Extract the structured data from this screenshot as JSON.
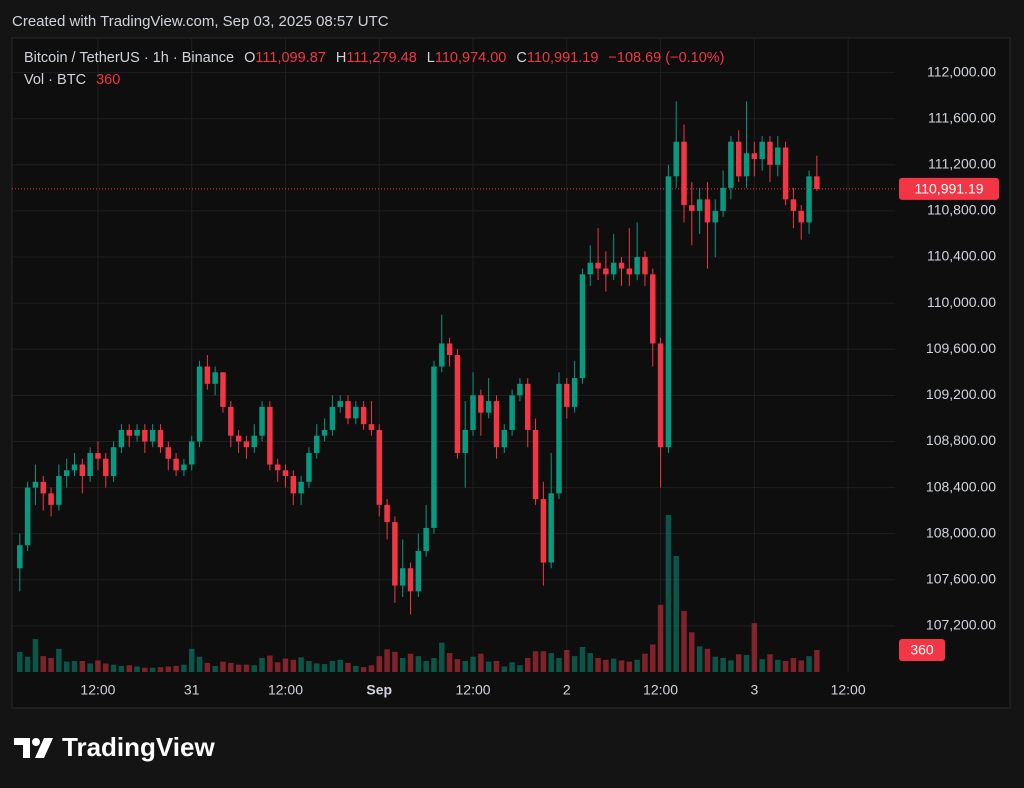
{
  "header": {
    "credit": "Created with TradingView.com, Sep 03, 2025 08:57 UTC"
  },
  "chart_data": {
    "type": "candlestick",
    "symbol": "Bitcoin / TetherUS · 1h · Binance",
    "ohlc_legend": [
      {
        "key": "O",
        "label": "111,099.87"
      },
      {
        "key": "H",
        "label": "111,279.48"
      },
      {
        "key": "L",
        "label": "110,974.00"
      },
      {
        "key": "C",
        "label": "110,991.19"
      }
    ],
    "change": "−108.69 (−0.10%)",
    "volume_title": "Vol · BTC",
    "volume_label": "360",
    "last_price_label": "110,991.19",
    "x": [
      "08-30 02:00",
      "08-30 03:00",
      "08-30 04:00",
      "08-30 05:00",
      "08-30 06:00",
      "08-30 07:00",
      "08-30 08:00",
      "08-30 09:00",
      "08-30 10:00",
      "08-30 11:00",
      "08-30 12:00",
      "08-30 13:00",
      "08-30 14:00",
      "08-30 15:00",
      "08-30 16:00",
      "08-30 17:00",
      "08-30 18:00",
      "08-30 19:00",
      "08-30 20:00",
      "08-30 21:00",
      "08-30 22:00",
      "08-30 23:00",
      "08-31 00:00",
      "08-31 01:00",
      "08-31 02:00",
      "08-31 03:00",
      "08-31 04:00",
      "08-31 05:00",
      "08-31 06:00",
      "08-31 07:00",
      "08-31 08:00",
      "08-31 09:00",
      "08-31 10:00",
      "08-31 11:00",
      "08-31 12:00",
      "08-31 13:00",
      "08-31 14:00",
      "08-31 15:00",
      "08-31 16:00",
      "08-31 17:00",
      "08-31 18:00",
      "08-31 19:00",
      "08-31 20:00",
      "08-31 21:00",
      "08-31 22:00",
      "08-31 23:00",
      "09-01 00:00",
      "09-01 01:00",
      "09-01 02:00",
      "09-01 03:00",
      "09-01 04:00",
      "09-01 05:00",
      "09-01 06:00",
      "09-01 07:00",
      "09-01 08:00",
      "09-01 09:00",
      "09-01 10:00",
      "09-01 11:00",
      "09-01 12:00",
      "09-01 13:00",
      "09-01 14:00",
      "09-01 15:00",
      "09-01 16:00",
      "09-01 17:00",
      "09-01 18:00",
      "09-01 19:00",
      "09-01 20:00",
      "09-01 21:00",
      "09-01 22:00",
      "09-01 23:00",
      "09-02 00:00",
      "09-02 01:00",
      "09-02 02:00",
      "09-02 03:00",
      "09-02 04:00",
      "09-02 05:00",
      "09-02 06:00",
      "09-02 07:00",
      "09-02 08:00",
      "09-02 09:00",
      "09-02 10:00",
      "09-02 11:00",
      "09-02 12:00",
      "09-02 13:00",
      "09-02 14:00",
      "09-02 15:00",
      "09-02 16:00",
      "09-02 17:00",
      "09-02 18:00",
      "09-02 19:00",
      "09-02 20:00",
      "09-02 21:00",
      "09-02 22:00",
      "09-02 23:00",
      "09-03 00:00",
      "09-03 01:00",
      "09-03 02:00",
      "09-03 03:00",
      "09-03 04:00",
      "09-03 05:00",
      "09-03 06:00",
      "09-03 07:00",
      "09-03 08:00"
    ],
    "open": [
      107700,
      107900,
      108400,
      108450,
      108350,
      108250,
      108500,
      108550,
      108600,
      108500,
      108700,
      108650,
      108500,
      108750,
      108900,
      108850,
      108900,
      108800,
      108900,
      108750,
      108650,
      108550,
      108600,
      108800,
      109450,
      109300,
      109400,
      109100,
      108850,
      108800,
      108750,
      108850,
      109100,
      108600,
      108550,
      108500,
      108350,
      108450,
      108700,
      108850,
      108900,
      109100,
      109150,
      109000,
      109100,
      108950,
      108900,
      108250,
      108100,
      107550,
      107700,
      107500,
      107850,
      108050,
      109450,
      109650,
      109550,
      108700,
      108900,
      109200,
      109050,
      109150,
      108750,
      108900,
      109200,
      109300,
      108900,
      108300,
      107750,
      108350,
      109300,
      109100,
      109350,
      110250,
      110350,
      110300,
      110250,
      110350,
      110300,
      110250,
      110400,
      110250,
      109650,
      108750,
      111100,
      111400,
      110850,
      110800,
      110900,
      110700,
      110800,
      111000,
      111400,
      111100,
      111300,
      111250,
      111400,
      111200,
      111350,
      110900,
      110800,
      110700,
      111099.87
    ],
    "high": [
      108000,
      108450,
      108600,
      108500,
      108400,
      108600,
      108650,
      108700,
      108650,
      108750,
      108800,
      108700,
      108800,
      108950,
      108950,
      108950,
      108950,
      108950,
      108950,
      108800,
      108700,
      108650,
      108850,
      109500,
      109550,
      109450,
      109400,
      109150,
      108900,
      108850,
      108950,
      109150,
      109150,
      108650,
      108600,
      108550,
      108500,
      108750,
      108950,
      109000,
      109200,
      109200,
      109200,
      109150,
      109150,
      109150,
      108950,
      108300,
      108150,
      107950,
      107750,
      108000,
      108250,
      109500,
      109900,
      109700,
      109600,
      109150,
      109400,
      109250,
      109350,
      109200,
      108950,
      109250,
      109350,
      109350,
      109000,
      108450,
      108700,
      109400,
      109350,
      109500,
      110300,
      110500,
      110650,
      110450,
      110600,
      110400,
      110650,
      110700,
      110450,
      110300,
      109700,
      111200,
      111750,
      111550,
      111050,
      111000,
      111050,
      110900,
      111150,
      111450,
      111500,
      111750,
      111400,
      111450,
      111450,
      111450,
      111400,
      111000,
      110850,
      111150,
      111279.48
    ],
    "low": [
      107500,
      107850,
      108250,
      108200,
      108150,
      108200,
      108400,
      108500,
      108350,
      108450,
      108550,
      108400,
      108450,
      108700,
      108750,
      108800,
      108700,
      108750,
      108700,
      108550,
      108500,
      108500,
      108550,
      108750,
      109250,
      109200,
      109050,
      108750,
      108700,
      108650,
      108700,
      108800,
      108550,
      108450,
      108400,
      108250,
      108250,
      108400,
      108650,
      108800,
      108850,
      109050,
      108950,
      108950,
      108900,
      108850,
      108150,
      107950,
      107400,
      107450,
      107300,
      107450,
      107800,
      108000,
      109400,
      109450,
      108650,
      108400,
      108850,
      108850,
      109000,
      108650,
      108700,
      108850,
      109150,
      108750,
      108250,
      107550,
      107700,
      108300,
      109000,
      109050,
      109300,
      110150,
      110200,
      110100,
      110200,
      110150,
      110150,
      110200,
      110150,
      109450,
      108400,
      108700,
      111000,
      110700,
      110500,
      110600,
      110300,
      110400,
      110750,
      110900,
      111050,
      111000,
      111100,
      111150,
      111050,
      111100,
      110850,
      110650,
      110550,
      110600,
      110974
    ],
    "close": [
      107900,
      108400,
      108450,
      108350,
      108250,
      108500,
      108550,
      108600,
      108500,
      108700,
      108650,
      108500,
      108750,
      108900,
      108850,
      108900,
      108800,
      108900,
      108750,
      108650,
      108550,
      108600,
      108800,
      109450,
      109300,
      109400,
      109100,
      108850,
      108800,
      108750,
      108850,
      109100,
      108600,
      108550,
      108500,
      108350,
      108450,
      108700,
      108850,
      108900,
      109100,
      109150,
      109000,
      109100,
      108950,
      108900,
      108250,
      108100,
      107550,
      107700,
      107500,
      107850,
      108050,
      109450,
      109650,
      109550,
      108700,
      108900,
      109200,
      109050,
      109150,
      108750,
      108900,
      109200,
      109300,
      108900,
      108300,
      107750,
      108350,
      109300,
      109100,
      109350,
      110250,
      110350,
      110300,
      110250,
      110350,
      110300,
      110250,
      110400,
      110250,
      109650,
      108750,
      111100,
      111400,
      110850,
      110800,
      110900,
      110700,
      110800,
      111000,
      111400,
      111100,
      111300,
      111250,
      111400,
      111200,
      111350,
      110900,
      110800,
      110700,
      111100,
      110991.19
    ],
    "volume": [
      330,
      250,
      540,
      260,
      230,
      380,
      170,
      180,
      180,
      140,
      190,
      140,
      120,
      100,
      110,
      90,
      70,
      70,
      80,
      90,
      100,
      120,
      380,
      250,
      150,
      100,
      170,
      150,
      120,
      120,
      110,
      230,
      270,
      160,
      220,
      200,
      240,
      180,
      140,
      130,
      180,
      200,
      150,
      100,
      80,
      110,
      260,
      370,
      330,
      230,
      300,
      260,
      180,
      230,
      480,
      310,
      210,
      180,
      250,
      300,
      170,
      180,
      90,
      160,
      110,
      230,
      340,
      340,
      310,
      230,
      360,
      260,
      410,
      310,
      230,
      200,
      220,
      190,
      170,
      200,
      300,
      450,
      1100,
      2570,
      1900,
      1000,
      650,
      420,
      380,
      250,
      230,
      190,
      290,
      280,
      800,
      210,
      290,
      200,
      180,
      230,
      190,
      260,
      360
    ],
    "up_color": "#089981",
    "down_color": "#f23645",
    "xlim": [
      "08-30 01:00",
      "09-03 18:00"
    ],
    "ylim": [
      106800,
      112300
    ],
    "yticks": [
      {
        "value": 107200,
        "label": "107,200.00"
      },
      {
        "value": 107600,
        "label": "107,600.00"
      },
      {
        "value": 108000,
        "label": "108,000.00"
      },
      {
        "value": 108400,
        "label": "108,400.00"
      },
      {
        "value": 108800,
        "label": "108,800.00"
      },
      {
        "value": 109200,
        "label": "109,200.00"
      },
      {
        "value": 109600,
        "label": "109,600.00"
      },
      {
        "value": 110000,
        "label": "110,000.00"
      },
      {
        "value": 110400,
        "label": "110,400.00"
      },
      {
        "value": 110800,
        "label": "110,800.00"
      },
      {
        "value": 111200,
        "label": "111,200.00"
      },
      {
        "value": 111600,
        "label": "111,600.00"
      },
      {
        "value": 112000,
        "label": "112,000.00"
      }
    ],
    "xticks": [
      {
        "value": "08-30 12:00",
        "label": "12:00"
      },
      {
        "value": "08-31 00:00",
        "label": "31"
      },
      {
        "value": "08-31 12:00",
        "label": "12:00"
      },
      {
        "value": "09-01 00:00",
        "label": "Sep"
      },
      {
        "value": "09-01 12:00",
        "label": "12:00"
      },
      {
        "value": "09-02 00:00",
        "label": "2"
      },
      {
        "value": "09-02 12:00",
        "label": "12:00"
      },
      {
        "value": "09-03 00:00",
        "label": "3"
      },
      {
        "value": "09-03 12:00",
        "label": "12:00"
      }
    ],
    "grid": true
  },
  "footer": {
    "brand": "TradingView"
  }
}
